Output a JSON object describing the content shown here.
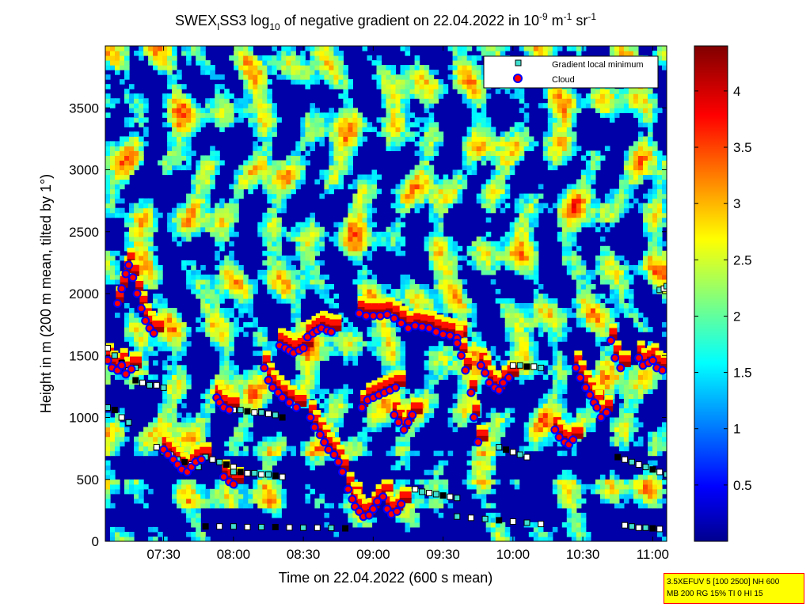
{
  "chart_data": {
    "type": "heatmap",
    "title_parts": {
      "a": "SWEX",
      "sub1": "I",
      "b": "SS3 log",
      "sub2": "10",
      "c": " of negative gradient on 22.04.2022 in 10",
      "sup1": "-9",
      "d": " m",
      "sup2": "-1",
      "e": " sr",
      "sup3": "-1"
    },
    "xlabel": "Time on 22.04.2022 (600 s mean)",
    "ylabel": "Height in m (200 m mean, tilted by 1°)",
    "xlim_hours": [
      7.083,
      11.1
    ],
    "ylim": [
      0,
      4000
    ],
    "x_ticks": [
      {
        "label": "07:30",
        "value": 7.5
      },
      {
        "label": "08:00",
        "value": 8.0
      },
      {
        "label": "08:30",
        "value": 8.5
      },
      {
        "label": "09:00",
        "value": 9.0
      },
      {
        "label": "09:30",
        "value": 9.5
      },
      {
        "label": "10:00",
        "value": 10.0
      },
      {
        "label": "10:30",
        "value": 10.5
      },
      {
        "label": "11:00",
        "value": 11.0
      }
    ],
    "y_ticks": [
      {
        "label": "0",
        "value": 0
      },
      {
        "label": "500",
        "value": 500
      },
      {
        "label": "1000",
        "value": 1000
      },
      {
        "label": "1500",
        "value": 1500
      },
      {
        "label": "2000",
        "value": 2000
      },
      {
        "label": "2500",
        "value": 2500
      },
      {
        "label": "3000",
        "value": 3000
      },
      {
        "label": "3500",
        "value": 3500
      }
    ],
    "colorbar": {
      "colormap": "jet",
      "range": [
        0,
        4.4
      ],
      "ticks": [
        {
          "label": "0.5",
          "value": 0.5
        },
        {
          "label": "1",
          "value": 1
        },
        {
          "label": "1.5",
          "value": 1.5
        },
        {
          "label": "2",
          "value": 2
        },
        {
          "label": "2.5",
          "value": 2.5
        },
        {
          "label": "3",
          "value": 3
        },
        {
          "label": "3.5",
          "value": 3.5
        },
        {
          "label": "4",
          "value": 4
        }
      ]
    },
    "legend": {
      "placement": "top-right",
      "entries": [
        {
          "label": "Gradient local minimum",
          "marker": "square",
          "color": "#40e0d0"
        },
        {
          "label": "Cloud",
          "marker": "circle",
          "color": "#ff0000",
          "edge": "#0000ff"
        }
      ]
    },
    "cloud_series": [
      {
        "x": [
          7.1,
          7.13,
          7.17,
          7.2,
          7.23,
          7.27
        ],
        "y": [
          1460,
          1400,
          1380,
          1420,
          1350,
          1390
        ]
      },
      {
        "x": [
          7.17,
          7.2,
          7.23,
          7.25,
          7.28,
          7.31,
          7.34,
          7.37,
          7.4,
          7.43
        ],
        "y": [
          1920,
          2040,
          2160,
          2230,
          2130,
          2000,
          1880,
          1780,
          1720,
          1680
        ]
      },
      {
        "x": [
          7.5,
          7.53,
          7.57,
          7.6,
          7.63,
          7.67,
          7.7,
          7.73,
          7.77
        ],
        "y": [
          740,
          700,
          660,
          620,
          580,
          560,
          600,
          640,
          660
        ]
      },
      {
        "x": [
          7.88,
          7.9,
          7.93,
          7.97
        ],
        "y": [
          1160,
          1120,
          1080,
          1060
        ]
      },
      {
        "x": [
          7.93,
          7.97,
          8.0
        ],
        "y": [
          520,
          480,
          460
        ]
      },
      {
        "x": [
          8.33,
          8.37,
          8.4,
          8.43,
          8.47,
          8.5
        ],
        "y": [
          1580,
          1560,
          1540,
          1520,
          1540,
          1560
        ]
      },
      {
        "x": [
          8.22,
          8.25,
          8.28,
          8.32,
          8.35,
          8.4,
          8.45
        ],
        "y": [
          1400,
          1300,
          1240,
          1200,
          1160,
          1120,
          1080
        ]
      },
      {
        "x": [
          8.53,
          8.57,
          8.6,
          8.63,
          8.67,
          8.7
        ],
        "y": [
          1650,
          1680,
          1700,
          1720,
          1700,
          1690
        ]
      },
      {
        "x": [
          8.55,
          8.58,
          8.62,
          8.65,
          8.68,
          8.72,
          8.75,
          8.78,
          8.82,
          8.85
        ],
        "y": [
          1000,
          920,
          860,
          800,
          740,
          700,
          640,
          560,
          420,
          340
        ]
      },
      {
        "x": [
          8.87,
          8.9,
          8.93,
          8.97,
          9.0,
          9.03,
          9.07
        ],
        "y": [
          280,
          240,
          200,
          210,
          260,
          320,
          360
        ]
      },
      {
        "x": [
          9.1,
          9.13,
          9.17,
          9.2
        ],
        "y": [
          260,
          220,
          240,
          300
        ]
      },
      {
        "x": [
          8.92,
          8.96,
          9.0,
          9.04,
          9.08,
          9.12,
          9.16
        ],
        "y": [
          1080,
          1140,
          1160,
          1180,
          1200,
          1220,
          1240
        ]
      },
      {
        "x": [
          9.15,
          9.18,
          9.22,
          9.25,
          9.28
        ],
        "y": [
          1020,
          960,
          900,
          960,
          1020
        ]
      },
      {
        "x": [
          8.9,
          8.95,
          9.0,
          9.05,
          9.1,
          9.15,
          9.2,
          9.25,
          9.3,
          9.35,
          9.4,
          9.45,
          9.5,
          9.55,
          9.6
        ],
        "y": [
          1840,
          1820,
          1820,
          1820,
          1830,
          1800,
          1760,
          1720,
          1740,
          1730,
          1720,
          1690,
          1670,
          1660,
          1640
        ]
      },
      {
        "x": [
          9.6,
          9.63,
          9.66,
          9.7,
          9.72,
          9.75
        ],
        "y": [
          1600,
          1500,
          1380,
          1200,
          1000,
          800
        ]
      },
      {
        "x": [
          9.77,
          9.8,
          9.83,
          9.87,
          9.9,
          9.93,
          9.97
        ],
        "y": [
          1420,
          1360,
          1280,
          1240,
          1220,
          1280,
          1320
        ]
      },
      {
        "x": [
          10.3,
          10.33,
          10.37,
          10.4,
          10.43
        ],
        "y": [
          900,
          840,
          800,
          780,
          820
        ]
      },
      {
        "x": [
          10.45,
          10.48,
          10.52,
          10.55,
          10.58
        ],
        "y": [
          1400,
          1320,
          1240,
          1180,
          1120
        ]
      },
      {
        "x": [
          10.6,
          10.63,
          10.67,
          10.7,
          10.73,
          10.77
        ],
        "y": [
          1080,
          1000,
          1040,
          1620,
          1480,
          1400
        ]
      },
      {
        "x": [
          10.9,
          10.93,
          10.97,
          11.0,
          11.03,
          11.07
        ],
        "y": [
          1480,
          1420,
          1440,
          1460,
          1400,
          1380
        ]
      }
    ],
    "minimum_series": [
      {
        "x": [
          7.1,
          7.15,
          7.2,
          7.25,
          7.3
        ],
        "y": [
          1560,
          1500,
          1440,
          1380,
          1400
        ]
      },
      {
        "x": [
          7.1,
          7.15,
          7.2,
          7.25
        ],
        "y": [
          1080,
          1060,
          1000,
          960
        ]
      },
      {
        "x": [
          7.3,
          7.35,
          7.4,
          7.45,
          7.5
        ],
        "y": [
          1300,
          1280,
          1260,
          1260,
          1240
        ]
      },
      {
        "x": [
          7.45,
          7.5,
          7.55,
          7.6,
          7.65,
          7.7,
          7.75
        ],
        "y": [
          760,
          720,
          700,
          660,
          640,
          620,
          600
        ]
      },
      {
        "x": [
          7.8,
          7.85,
          7.9,
          7.95,
          8.0
        ],
        "y": [
          680,
          660,
          640,
          620,
          600
        ]
      },
      {
        "x": [
          8.0,
          8.05,
          8.1,
          8.15,
          8.2,
          8.25,
          8.3,
          8.35
        ],
        "y": [
          1060,
          1060,
          1050,
          1040,
          1040,
          1030,
          1020,
          1000
        ]
      },
      {
        "x": [
          8.0,
          8.05,
          8.1,
          8.15,
          8.2,
          8.25,
          8.3,
          8.35
        ],
        "y": [
          560,
          560,
          550,
          550,
          540,
          540,
          530,
          520
        ]
      },
      {
        "x": [
          7.8,
          7.9,
          8.0,
          8.1,
          8.2,
          8.3,
          8.4,
          8.5,
          8.6,
          8.7,
          8.8
        ],
        "y": [
          120,
          120,
          120,
          115,
          115,
          115,
          112,
          110,
          110,
          108,
          105
        ]
      },
      {
        "x": [
          9.3,
          9.35,
          9.4,
          9.45,
          9.5,
          9.55,
          9.6
        ],
        "y": [
          420,
          400,
          390,
          380,
          370,
          360,
          350
        ]
      },
      {
        "x": [
          9.6,
          9.7,
          9.8,
          9.9,
          10.0,
          10.1,
          10.2
        ],
        "y": [
          200,
          190,
          180,
          170,
          160,
          150,
          140
        ]
      },
      {
        "x": [
          10.0,
          10.05,
          10.1,
          10.15,
          10.2
        ],
        "y": [
          1420,
          1420,
          1410,
          1410,
          1400
        ]
      },
      {
        "x": [
          9.9,
          9.95,
          10.0,
          10.05,
          10.1
        ],
        "y": [
          760,
          740,
          720,
          700,
          680
        ]
      },
      {
        "x": [
          10.75,
          10.8,
          10.85,
          10.9,
          10.95,
          11.0,
          11.05,
          11.1
        ],
        "y": [
          680,
          660,
          640,
          620,
          600,
          580,
          560,
          540
        ]
      },
      {
        "x": [
          10.8,
          10.85,
          10.9,
          10.95,
          11.0,
          11.05
        ],
        "y": [
          130,
          120,
          110,
          110,
          105,
          100
        ]
      },
      {
        "x": [
          11.05,
          11.08,
          11.1
        ],
        "y": [
          2030,
          2040,
          2060
        ]
      }
    ]
  },
  "infobox": {
    "line1": "3.5XEFUV 5 [100 2500] NH 600",
    "line2": "MB 200 RG 15% TI 0 HI 15"
  }
}
